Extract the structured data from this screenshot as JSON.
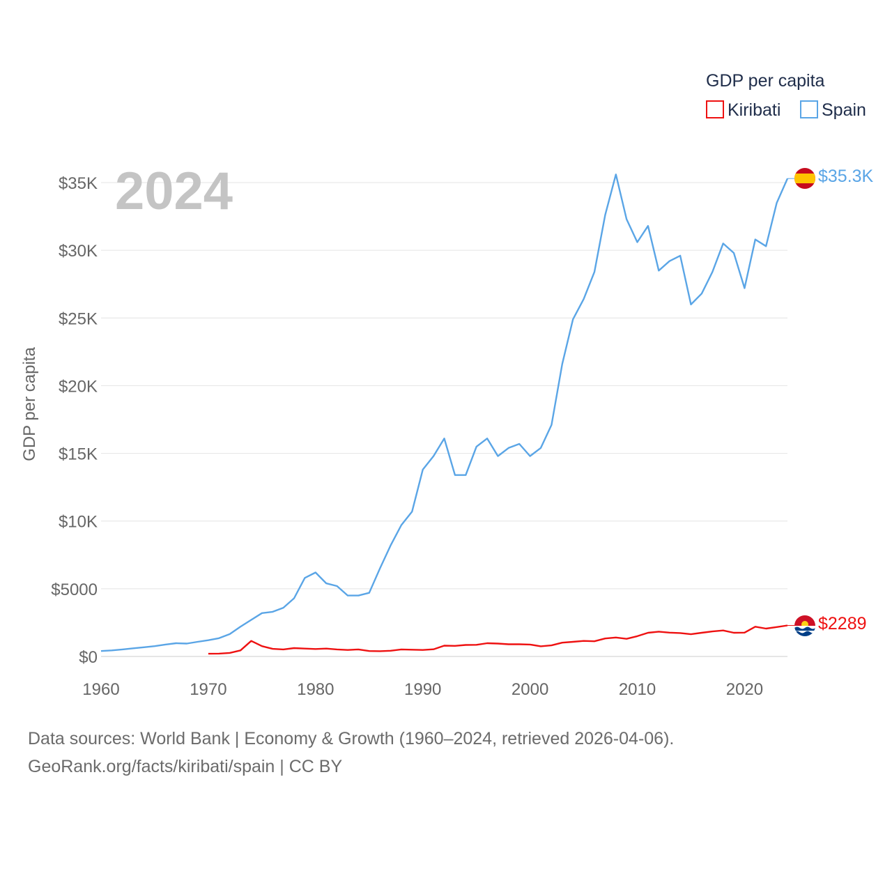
{
  "chart_data": {
    "type": "line",
    "title": "GDP per capita",
    "ylabel": "GDP per capita",
    "xlabel": "",
    "year_shown": "2024",
    "xlim": [
      1960,
      2024
    ],
    "ylim": [
      0,
      35000
    ],
    "y_ticks": [
      0,
      5000,
      10000,
      15000,
      20000,
      25000,
      30000,
      35000
    ],
    "y_tick_labels": [
      "$0",
      "$5000",
      "$10K",
      "$15K",
      "$20K",
      "$25K",
      "$30K",
      "$35K"
    ],
    "x_ticks": [
      1960,
      1970,
      1980,
      1990,
      2000,
      2010,
      2020
    ],
    "x_tick_labels": [
      "1960",
      "1970",
      "1980",
      "1990",
      "2000",
      "2010",
      "2020"
    ],
    "grid": true,
    "legend_position": "top-right",
    "series": [
      {
        "name": "Kiribati",
        "color": "#ee1111",
        "end_label": "$2289",
        "flag": "kiribati-flag",
        "x": [
          1970,
          1971,
          1972,
          1973,
          1974,
          1975,
          1976,
          1977,
          1978,
          1979,
          1980,
          1981,
          1982,
          1983,
          1984,
          1985,
          1986,
          1987,
          1988,
          1989,
          1990,
          1991,
          1992,
          1993,
          1994,
          1995,
          1996,
          1997,
          1998,
          1999,
          2000,
          2001,
          2002,
          2003,
          2004,
          2005,
          2006,
          2007,
          2008,
          2009,
          2010,
          2011,
          2012,
          2013,
          2014,
          2015,
          2016,
          2017,
          2018,
          2019,
          2020,
          2021,
          2022,
          2023,
          2024
        ],
        "values": [
          200,
          210,
          260,
          450,
          1150,
          760,
          560,
          520,
          620,
          580,
          550,
          580,
          520,
          480,
          520,
          400,
          390,
          420,
          520,
          500,
          480,
          530,
          800,
          780,
          850,
          860,
          980,
          950,
          900,
          900,
          880,
          750,
          820,
          1020,
          1080,
          1150,
          1120,
          1330,
          1400,
          1300,
          1500,
          1750,
          1830,
          1760,
          1730,
          1640,
          1750,
          1850,
          1920,
          1750,
          1760,
          2200,
          2060,
          2170,
          2289
        ]
      },
      {
        "name": "Spain",
        "color": "#5aa5e6",
        "end_label": "$35.3K",
        "flag": "spain-flag",
        "x": [
          1960,
          1961,
          1962,
          1963,
          1964,
          1965,
          1966,
          1967,
          1968,
          1969,
          1970,
          1971,
          1972,
          1973,
          1974,
          1975,
          1976,
          1977,
          1978,
          1979,
          1980,
          1981,
          1982,
          1983,
          1984,
          1985,
          1986,
          1987,
          1988,
          1989,
          1990,
          1991,
          1992,
          1993,
          1994,
          1995,
          1996,
          1997,
          1998,
          1999,
          2000,
          2001,
          2002,
          2003,
          2004,
          2005,
          2006,
          2007,
          2008,
          2009,
          2010,
          2011,
          2012,
          2013,
          2014,
          2015,
          2016,
          2017,
          2018,
          2019,
          2020,
          2021,
          2022,
          2023,
          2024
        ],
        "values": [
          400,
          450,
          520,
          600,
          680,
          760,
          880,
          980,
          950,
          1080,
          1200,
          1350,
          1650,
          2200,
          2700,
          3200,
          3300,
          3600,
          4300,
          5800,
          6200,
          5400,
          5200,
          4500,
          4500,
          4700,
          6500,
          8200,
          9700,
          10700,
          13800,
          14800,
          16100,
          13400,
          13400,
          15500,
          16100,
          14800,
          15400,
          15700,
          14800,
          15400,
          17100,
          21600,
          24900,
          26400,
          28400,
          32600,
          35600,
          32300,
          30600,
          31800,
          28500,
          29200,
          29600,
          26000,
          26800,
          28400,
          30500,
          29800,
          27200,
          30800,
          30300,
          33500,
          35300
        ]
      }
    ]
  },
  "footer": {
    "line1": "Data sources: World Bank | Economy & Growth (1960–2024, retrieved 2026-04-06).",
    "line2": "GeoRank.org/facts/kiribati/spain | CC BY"
  }
}
